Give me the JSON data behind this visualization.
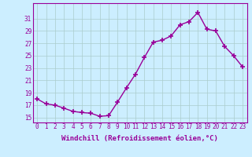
{
  "x": [
    0,
    1,
    2,
    3,
    4,
    5,
    6,
    7,
    8,
    9,
    10,
    11,
    12,
    13,
    14,
    15,
    16,
    17,
    18,
    19,
    20,
    21,
    22,
    23
  ],
  "y": [
    18.0,
    17.2,
    17.0,
    16.5,
    16.0,
    15.8,
    15.7,
    15.2,
    15.3,
    17.5,
    19.8,
    22.0,
    24.7,
    27.2,
    27.5,
    28.2,
    30.0,
    30.5,
    32.0,
    29.3,
    29.0,
    26.5,
    25.0,
    23.2
  ],
  "line_color": "#990099",
  "marker": "+",
  "marker_size": 4,
  "marker_lw": 1.2,
  "xlabel": "Windchill (Refroidissement éolien,°C)",
  "xlabel_fontsize": 6.5,
  "ylabel_ticks": [
    15,
    17,
    19,
    21,
    23,
    25,
    27,
    29,
    31
  ],
  "xtick_labels": [
    "0",
    "1",
    "2",
    "3",
    "4",
    "5",
    "6",
    "7",
    "8",
    "9",
    "10",
    "11",
    "12",
    "13",
    "14",
    "15",
    "16",
    "17",
    "18",
    "19",
    "20",
    "21",
    "22",
    "23"
  ],
  "ylim": [
    14.2,
    33.5
  ],
  "xlim": [
    -0.5,
    23.5
  ],
  "bg_color": "#cceeff",
  "grid_color": "#aacccc",
  "tick_fontsize": 5.5,
  "line_width": 1.0
}
